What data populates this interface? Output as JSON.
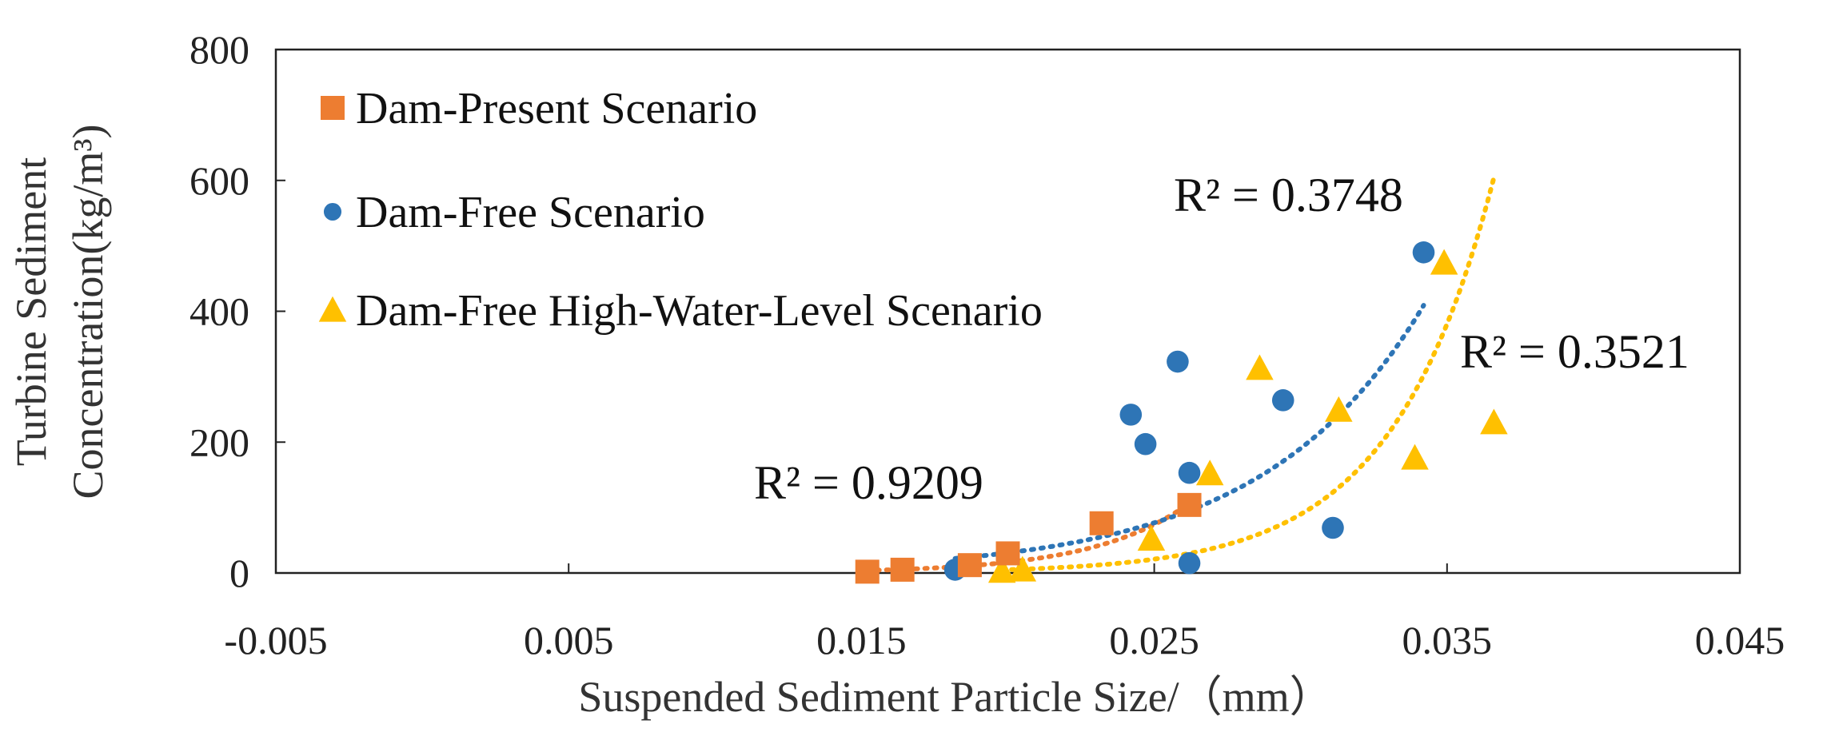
{
  "chart_data": {
    "type": "scatter",
    "xlabel": "Suspended Sediment Particle Size/（mm）",
    "ylabel_lines": [
      "Turbine Sediment",
      "Concentration(kg/m³)"
    ],
    "xlim": [
      -0.005,
      0.045
    ],
    "ylim": [
      0,
      800
    ],
    "x_ticks": [
      -0.005,
      0.005,
      0.015,
      0.025,
      0.035,
      0.045
    ],
    "x_tick_labels": [
      "-0.005",
      "0.005",
      "0.015",
      "0.025",
      "0.035",
      "0.045"
    ],
    "y_ticks": [
      0,
      200,
      400,
      600,
      800
    ],
    "y_tick_labels": [
      "0",
      "200",
      "400",
      "600",
      "800"
    ],
    "grid": false,
    "legend_position": "top-left",
    "series": [
      {
        "name": "Dam-Present Scenario",
        "marker": "square",
        "color": "#ED7D31",
        "points": [
          {
            "x": 0.0152,
            "y": 2
          },
          {
            "x": 0.0164,
            "y": 5
          },
          {
            "x": 0.0187,
            "y": 12
          },
          {
            "x": 0.02,
            "y": 30
          },
          {
            "x": 0.0232,
            "y": 76
          },
          {
            "x": 0.0262,
            "y": 104
          }
        ],
        "trendline": {
          "type": "exponential",
          "a": 0.039,
          "b": 302,
          "x_range": [
            0.0152,
            0.0262
          ],
          "r2_label": "R² = 0.9209"
        }
      },
      {
        "name": "Dam-Free Scenario",
        "marker": "circle",
        "color": "#2E75B6",
        "points": [
          {
            "x": 0.0182,
            "y": 5
          },
          {
            "x": 0.0242,
            "y": 242
          },
          {
            "x": 0.0247,
            "y": 197
          },
          {
            "x": 0.0258,
            "y": 323
          },
          {
            "x": 0.0262,
            "y": 153
          },
          {
            "x": 0.0262,
            "y": 15
          },
          {
            "x": 0.0294,
            "y": 264
          },
          {
            "x": 0.0311,
            "y": 69
          },
          {
            "x": 0.0342,
            "y": 490
          }
        ],
        "trendline": {
          "type": "exponential",
          "a": 0.81,
          "b": 182,
          "x_range": [
            0.0182,
            0.0342
          ],
          "r2_label": "R² = 0.3748"
        }
      },
      {
        "name": "Dam-Free High-Water-Level Scenario",
        "marker": "triangle",
        "color": "#FFC000",
        "points": [
          {
            "x": 0.0198,
            "y": 3
          },
          {
            "x": 0.0205,
            "y": 5
          },
          {
            "x": 0.0249,
            "y": 52
          },
          {
            "x": 0.0269,
            "y": 152
          },
          {
            "x": 0.0286,
            "y": 313
          },
          {
            "x": 0.0313,
            "y": 249
          },
          {
            "x": 0.0339,
            "y": 176
          },
          {
            "x": 0.0349,
            "y": 474
          },
          {
            "x": 0.0366,
            "y": 230
          }
        ],
        "trendline": {
          "type": "exponential",
          "a": 0.0154,
          "b": 289,
          "x_range": [
            0.0198,
            0.0366
          ],
          "r2_label": "R² = 0.3521"
        }
      }
    ]
  }
}
